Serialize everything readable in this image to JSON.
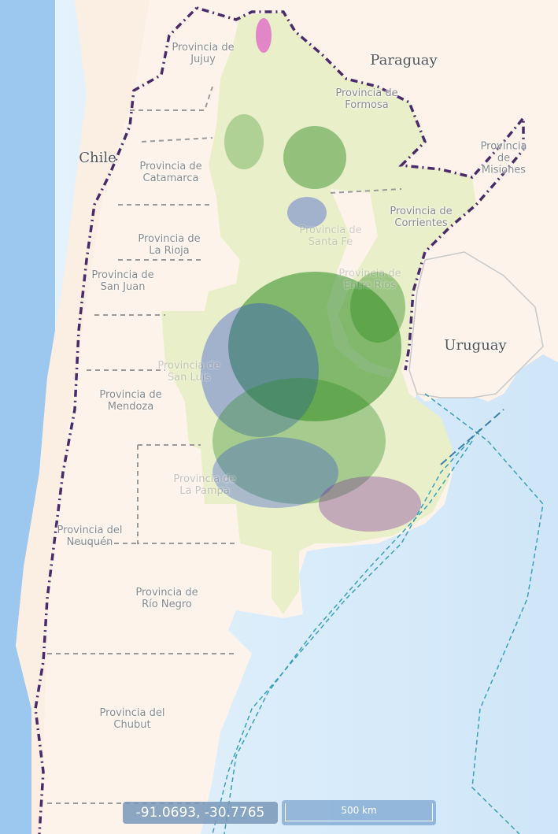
{
  "map": {
    "countries": [
      {
        "key": "paraguay",
        "name": "Paraguay"
      },
      {
        "key": "chile",
        "name": "Chile"
      },
      {
        "key": "uruguay",
        "name": "Uruguay"
      }
    ],
    "provinces": [
      {
        "key": "jujuy",
        "name": "Provincia de\nJujuy"
      },
      {
        "key": "formosa",
        "name": "Provincia de\nFormosa"
      },
      {
        "key": "misiones",
        "name": "Provincia de\nMisiones"
      },
      {
        "key": "catamarca",
        "name": "Provincia de\nCatamarca"
      },
      {
        "key": "corrientes",
        "name": "Provincia de\nCorrientes"
      },
      {
        "key": "la-rioja",
        "name": "Provincia de\nLa Rioja"
      },
      {
        "key": "san-juan",
        "name": "Provincia de\nSan Juan"
      },
      {
        "key": "entre-rios",
        "name": "Provincia de\nEntre Ríos"
      },
      {
        "key": "santa-fe",
        "name": "Provincia de\nSanta Fe"
      },
      {
        "key": "san-luis",
        "name": "Provincia de\nSan Luis"
      },
      {
        "key": "mendoza",
        "name": "Provincia de\nMendoza"
      },
      {
        "key": "la-pampa",
        "name": "Provincia de\nLa Pampa"
      },
      {
        "key": "neuquen",
        "name": "Provincia del\nNeuquén"
      },
      {
        "key": "rio-negro",
        "name": "Provincia de\nRío Negro"
      },
      {
        "key": "chubut",
        "name": "Provincia del\nChubut"
      }
    ],
    "colors": {
      "ocean": "#dfeffb",
      "land": "#fdf3ea",
      "study_area": "#e8efc9",
      "cover_green": "#2c8a1f",
      "cover_blue": "#1f3fd0",
      "cover_magenta": "#e040c8",
      "border": "#4b2a6a"
    }
  },
  "coordinates": {
    "readout": "-91.0693, -30.7765"
  },
  "scale": {
    "label": "500 km"
  }
}
